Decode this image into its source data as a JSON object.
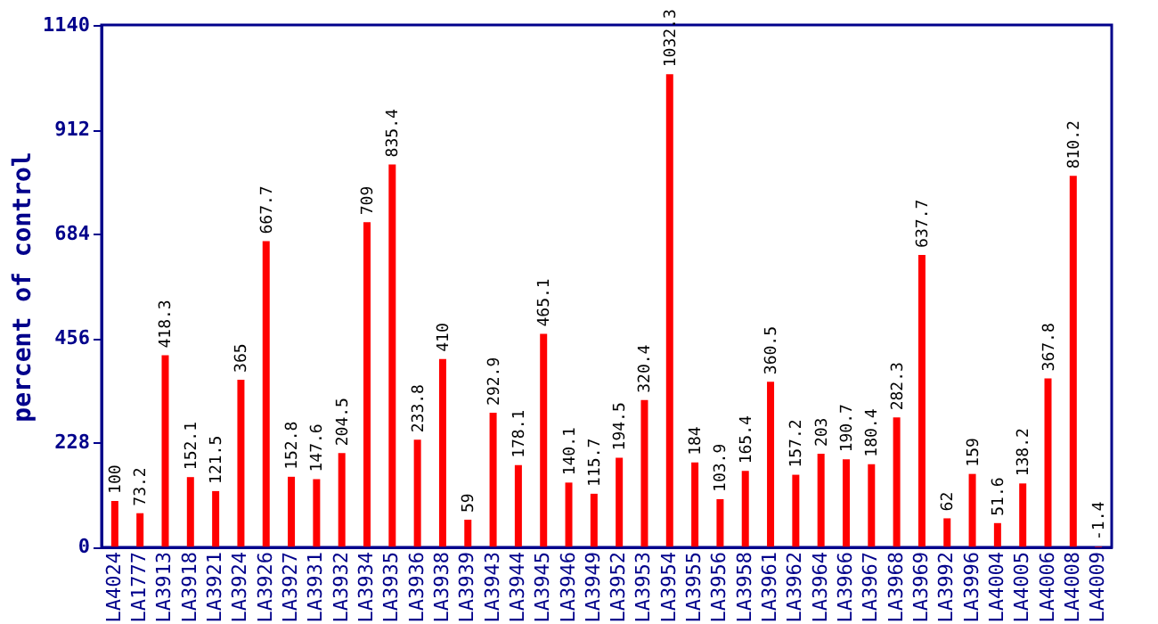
{
  "chart_data": {
    "type": "bar",
    "ylabel": "percent of control",
    "categories": [
      "LA4024",
      "LA1777",
      "LA3913",
      "LA3918",
      "LA3921",
      "LA3924",
      "LA3926",
      "LA3927",
      "LA3931",
      "LA3932",
      "LA3934",
      "LA3935",
      "LA3936",
      "LA3938",
      "LA3939",
      "LA3943",
      "LA3944",
      "LA3945",
      "LA3946",
      "LA3949",
      "LA3952",
      "LA3953",
      "LA3954",
      "LA3955",
      "LA3956",
      "LA3958",
      "LA3961",
      "LA3962",
      "LA3964",
      "LA3966",
      "LA3967",
      "LA3968",
      "LA3969",
      "LA3992",
      "LA3996",
      "LA4004",
      "LA4005",
      "LA4006",
      "LA4008",
      "LA4009"
    ],
    "values": [
      100,
      73.2,
      418.3,
      152.1,
      121.5,
      365,
      667.7,
      152.8,
      147.6,
      204.5,
      709,
      835.4,
      233.8,
      410,
      59,
      292.9,
      178.1,
      465.1,
      140.1,
      115.7,
      194.5,
      320.4,
      1032.3,
      184,
      103.9,
      165.4,
      360.5,
      157.2,
      203,
      190.7,
      180.4,
      282.3,
      637.7,
      62,
      159,
      51.6,
      138.2,
      367.8,
      810.2,
      -1.4
    ],
    "color": "#ff0000",
    "ylim": [
      -1.4,
      1140
    ],
    "yticks": [
      0,
      228,
      456,
      684,
      912,
      1140
    ],
    "data_labels": true,
    "grid": false
  }
}
